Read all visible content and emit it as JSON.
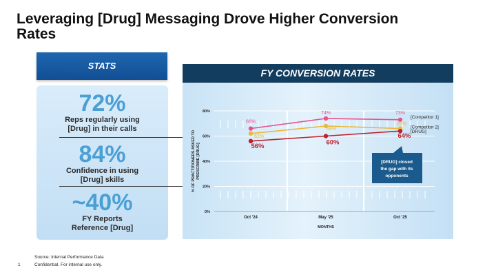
{
  "title": "Leveraging [Drug] Messaging Drove Higher Conversion Rates",
  "stats": {
    "header": "STATS",
    "items": [
      {
        "value": "72%",
        "desc_line1": "Reps regularly using",
        "desc_line2": "[Drug] in their calls"
      },
      {
        "value": "84%",
        "desc_line1": "Confidence in using",
        "desc_line2": "[Drug] skills"
      },
      {
        "value": "~40%",
        "desc_line1": "FY Reports",
        "desc_line2": "Reference [Drug]"
      }
    ]
  },
  "chart_header": "FY CONVERSION RATES",
  "footer": {
    "page_number": "1",
    "source": "Source: Internal Performance Data",
    "confidential": "Confidential. For internal use only."
  },
  "chart_data": {
    "type": "line",
    "title": "FY CONVERSION RATES",
    "xlabel": "MONTHS",
    "ylabel_line1": "% OF PRACTITIONERS ASKED TO",
    "ylabel_line2": "PRESCRIBE [DRUG]",
    "categories": [
      "Oct '24",
      "May '25",
      "Oct '25"
    ],
    "ylim": [
      0,
      80
    ],
    "yticks": [
      0,
      20,
      40,
      60,
      80
    ],
    "ytick_labels": [
      "0%",
      "20%",
      "40%",
      "60%",
      "80%"
    ],
    "series": [
      {
        "name": "[Competitor 1]",
        "color": "#e8538f",
        "values": [
          66,
          74,
          73
        ],
        "labels": [
          "66%",
          "74%",
          "73%"
        ]
      },
      {
        "name": "[Competitor 2]",
        "color": "#e9b83c",
        "values": [
          62,
          68,
          66
        ],
        "labels": [
          "62%",
          "68%",
          "66%"
        ]
      },
      {
        "name": "[DRUG]",
        "color": "#c0202e",
        "values": [
          56,
          60,
          64
        ],
        "labels": [
          "56%",
          "60%",
          "64%"
        ]
      }
    ],
    "annotation": {
      "line1": "[DRUG] closed",
      "line2": "the gap with its",
      "line3": "opponents",
      "color": "#1b5a8c"
    }
  }
}
